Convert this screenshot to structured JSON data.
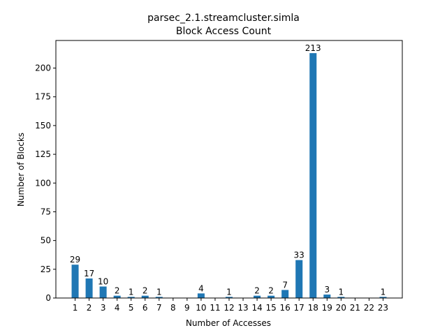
{
  "chart_data": {
    "type": "bar",
    "title": "parsec_2.1.streamcluster.simla",
    "subtitle": "Block Access Count",
    "xlabel": "Number of Accesses",
    "ylabel": "Number of Blocks",
    "categories": [
      "1",
      "2",
      "3",
      "4",
      "5",
      "6",
      "7",
      "8",
      "9",
      "10",
      "11",
      "12",
      "13",
      "14",
      "15",
      "16",
      "17",
      "18",
      "19",
      "20",
      "21",
      "22",
      "23"
    ],
    "values": [
      29,
      17,
      10,
      2,
      1,
      2,
      1,
      0,
      0,
      4,
      0,
      1,
      0,
      2,
      2,
      7,
      33,
      213,
      3,
      1,
      0,
      0,
      1
    ],
    "data_labels": [
      "29",
      "17",
      "10",
      "2",
      "1",
      "2",
      "1",
      "",
      "",
      "4",
      "",
      "1",
      "",
      "2",
      "2",
      "7",
      "33",
      "213",
      "3",
      "1",
      "",
      "",
      "1"
    ],
    "ylim": [
      0,
      224
    ],
    "yticks": [
      0,
      25,
      50,
      75,
      100,
      125,
      150,
      175,
      200
    ],
    "bar_color": "#1f77b4",
    "grid": false,
    "legend": "none"
  }
}
